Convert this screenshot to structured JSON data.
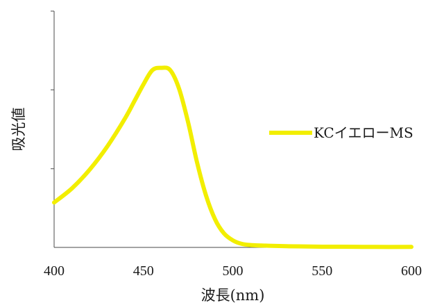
{
  "chart_data": {
    "type": "line",
    "xlabel": "波長(nm)",
    "ylabel": "吸光値",
    "xlim": [
      400,
      600
    ],
    "ylim": [
      0,
      1
    ],
    "x_ticks": [
      400,
      450,
      500,
      550,
      600
    ],
    "y_tick_labels_shown": false,
    "grid": false,
    "legend_position": "right",
    "series": [
      {
        "name": "KCイエローMS",
        "color": "#f2ee00",
        "x": [
          400,
          410,
          420,
          430,
          440,
          445,
          450,
          455,
          460,
          465,
          470,
          475,
          480,
          485,
          490,
          495,
          500,
          505,
          510,
          520,
          530,
          540,
          550,
          560,
          580,
          600
        ],
        "y": [
          0.19,
          0.25,
          0.33,
          0.43,
          0.55,
          0.62,
          0.69,
          0.75,
          0.76,
          0.75,
          0.67,
          0.53,
          0.36,
          0.22,
          0.12,
          0.06,
          0.03,
          0.015,
          0.01,
          0.007,
          0.005,
          0.004,
          0.003,
          0.003,
          0.002,
          0.002
        ]
      }
    ]
  }
}
